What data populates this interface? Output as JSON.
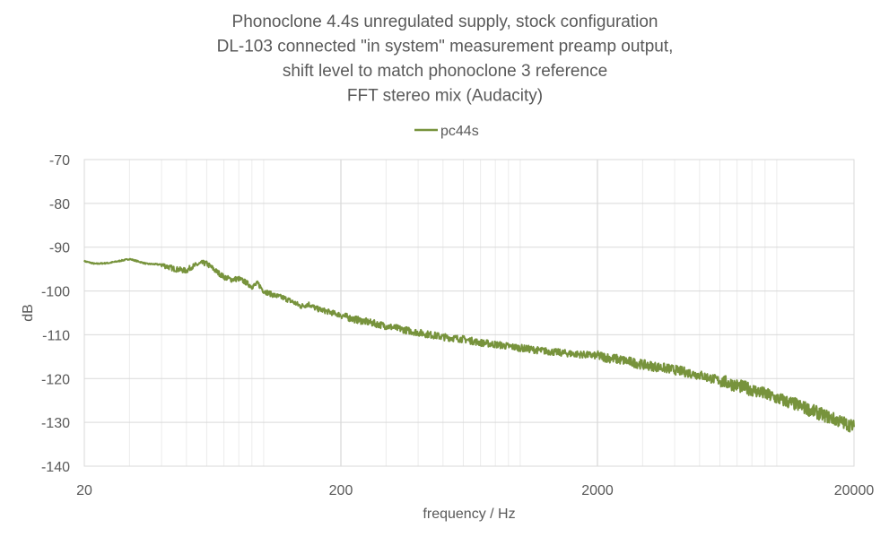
{
  "chart_data": {
    "type": "line",
    "title_lines": [
      "Phonoclone 4.4s unregulated supply, stock configuration",
      "DL-103 connected \"in system\" measurement preamp output,",
      "shift level to match phonoclone 3 reference",
      "FFT stereo mix (Audacity)"
    ],
    "xlabel": "frequency / Hz",
    "ylabel": "dB",
    "x_scale": "log",
    "xlim": [
      20,
      20000
    ],
    "ylim": [
      -140,
      -70
    ],
    "x_ticks": [
      "20",
      "200",
      "2000",
      "20000"
    ],
    "y_ticks": [
      "-70",
      "-80",
      "-90",
      "-100",
      "-110",
      "-120",
      "-130",
      "-140"
    ],
    "grid": true,
    "legend_position": "top",
    "series": [
      {
        "name": "pc44s",
        "color": "#77933C",
        "x": [
          20,
          22,
          25,
          30,
          35,
          38,
          40,
          42,
          45,
          48,
          50,
          52,
          55,
          58,
          60,
          62,
          65,
          70,
          75,
          80,
          85,
          90,
          95,
          100,
          110,
          120,
          130,
          140,
          150,
          160,
          180,
          200,
          220,
          250,
          300,
          350,
          400,
          500,
          600,
          700,
          800,
          1000,
          1200,
          1500,
          2000,
          2500,
          3000,
          4000,
          5000,
          6000,
          8000,
          10000,
          12000,
          15000,
          20000
        ],
        "y": [
          -93.2,
          -93.8,
          -93.6,
          -92.7,
          -93.8,
          -93.9,
          -94.0,
          -94.4,
          -95.0,
          -95.2,
          -95.4,
          -94.6,
          -94.0,
          -93.6,
          -93.8,
          -94.4,
          -95.4,
          -96.8,
          -97.4,
          -97.2,
          -98.0,
          -99.0,
          -98.3,
          -100.0,
          -101.0,
          -101.6,
          -102.5,
          -103.5,
          -103.0,
          -104.0,
          -104.8,
          -105.5,
          -106.3,
          -107.0,
          -108.0,
          -108.8,
          -109.5,
          -110.5,
          -111.0,
          -111.8,
          -112.2,
          -113.0,
          -113.6,
          -114.2,
          -114.8,
          -115.8,
          -116.8,
          -118.0,
          -119.2,
          -120.5,
          -122.5,
          -124.5,
          -126.0,
          -128.2,
          -131.0
        ]
      }
    ]
  }
}
